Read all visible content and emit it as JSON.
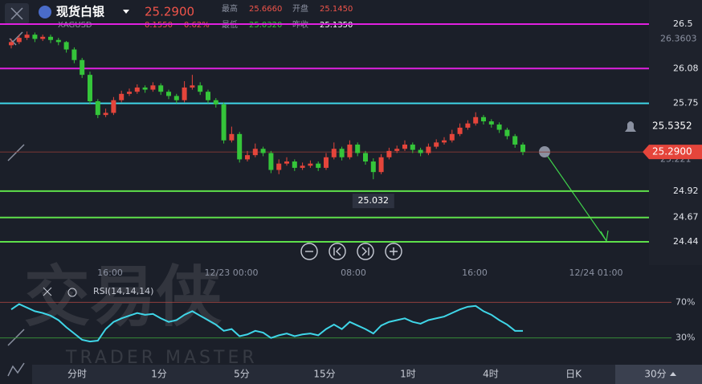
{
  "header": {
    "name": "现货白银",
    "price": "25.2900",
    "symbol": "XAGUSD",
    "change": "0.1550",
    "change_pct": "0.62%",
    "high_label": "最高",
    "high": "25.6660",
    "open_label": "开盘",
    "open": "25.1450",
    "low_label": "最低",
    "low": "25.0320",
    "prev_close_label": "昨收",
    "prev_close": "25.1350"
  },
  "chart_data": {
    "type": "candlestick",
    "ylim": [
      24.44,
      26.5
    ],
    "up_color": "#e5453b",
    "down_color": "#35c53a",
    "candles": [
      [
        26.3,
        26.36,
        26.27,
        26.33
      ],
      [
        26.33,
        26.4,
        26.31,
        26.37
      ],
      [
        26.37,
        26.43,
        26.35,
        26.4
      ],
      [
        26.4,
        26.42,
        26.33,
        26.36
      ],
      [
        26.36,
        26.4,
        26.34,
        26.38
      ],
      [
        26.38,
        26.4,
        26.32,
        26.35
      ],
      [
        26.35,
        26.37,
        26.3,
        26.33
      ],
      [
        26.33,
        26.34,
        26.23,
        26.26
      ],
      [
        26.26,
        26.28,
        26.13,
        26.16
      ],
      [
        26.16,
        26.18,
        25.99,
        26.02
      ],
      [
        26.02,
        26.05,
        25.74,
        25.77
      ],
      [
        25.77,
        25.79,
        25.61,
        25.64
      ],
      [
        25.64,
        25.7,
        25.62,
        25.66
      ],
      [
        25.66,
        25.81,
        25.64,
        25.78
      ],
      [
        25.78,
        25.87,
        25.76,
        25.84
      ],
      [
        25.84,
        25.89,
        25.82,
        25.86
      ],
      [
        25.86,
        25.93,
        25.84,
        25.9
      ],
      [
        25.9,
        25.92,
        25.85,
        25.88
      ],
      [
        25.88,
        25.95,
        25.86,
        25.92
      ],
      [
        25.92,
        25.94,
        25.83,
        25.86
      ],
      [
        25.86,
        25.88,
        25.79,
        25.82
      ],
      [
        25.82,
        25.84,
        25.75,
        25.78
      ],
      [
        25.78,
        25.96,
        25.76,
        25.9
      ],
      [
        25.9,
        26.02,
        25.88,
        25.92
      ],
      [
        25.92,
        25.95,
        25.83,
        25.86
      ],
      [
        25.86,
        25.88,
        25.75,
        25.78
      ],
      [
        25.78,
        25.8,
        25.71,
        25.74
      ],
      [
        25.74,
        25.76,
        25.37,
        25.4
      ],
      [
        25.4,
        25.53,
        25.38,
        25.46
      ],
      [
        25.46,
        25.48,
        25.19,
        25.22
      ],
      [
        25.22,
        25.3,
        25.2,
        25.26
      ],
      [
        25.26,
        25.37,
        25.24,
        25.32
      ],
      [
        25.32,
        25.34,
        25.25,
        25.28
      ],
      [
        25.28,
        25.3,
        25.09,
        25.12
      ],
      [
        25.12,
        25.22,
        25.08,
        25.18
      ],
      [
        25.18,
        25.24,
        25.16,
        25.2
      ],
      [
        25.2,
        25.22,
        25.11,
        25.14
      ],
      [
        25.14,
        25.19,
        25.12,
        25.16
      ],
      [
        25.16,
        25.21,
        25.14,
        25.18
      ],
      [
        25.18,
        25.2,
        25.11,
        25.14
      ],
      [
        25.14,
        25.28,
        25.12,
        25.24
      ],
      [
        25.24,
        25.38,
        25.22,
        25.32
      ],
      [
        25.32,
        25.34,
        25.21,
        25.24
      ],
      [
        25.24,
        25.4,
        25.22,
        25.36
      ],
      [
        25.36,
        25.38,
        25.25,
        25.28
      ],
      [
        25.28,
        25.3,
        25.17,
        25.2
      ],
      [
        25.2,
        25.23,
        25.032,
        25.1
      ],
      [
        25.1,
        25.27,
        25.08,
        25.24
      ],
      [
        25.24,
        25.33,
        25.22,
        25.3
      ],
      [
        25.3,
        25.35,
        25.28,
        25.32
      ],
      [
        25.32,
        25.4,
        25.3,
        25.36
      ],
      [
        25.36,
        25.38,
        25.28,
        25.31
      ],
      [
        25.31,
        25.33,
        25.25,
        25.28
      ],
      [
        25.28,
        25.37,
        25.26,
        25.34
      ],
      [
        25.34,
        25.41,
        25.32,
        25.38
      ],
      [
        25.38,
        25.43,
        25.36,
        25.4
      ],
      [
        25.4,
        25.5,
        25.38,
        25.46
      ],
      [
        25.46,
        25.56,
        25.44,
        25.52
      ],
      [
        25.52,
        25.59,
        25.5,
        25.56
      ],
      [
        25.56,
        25.666,
        25.54,
        25.62
      ],
      [
        25.62,
        25.64,
        25.55,
        25.58
      ],
      [
        25.58,
        25.6,
        25.52,
        25.55
      ],
      [
        25.55,
        25.57,
        25.47,
        25.5
      ],
      [
        25.5,
        25.52,
        25.41,
        25.44
      ],
      [
        25.44,
        25.46,
        25.33,
        25.36
      ],
      [
        25.36,
        25.38,
        25.26,
        25.29
      ]
    ],
    "price_lines": [
      {
        "value": 26.5,
        "color": "#e020e0"
      },
      {
        "value": 26.08,
        "color": "#e020e0"
      },
      {
        "value": 25.75,
        "color": "#3fd6e8"
      },
      {
        "value": 24.92,
        "color": "#5ee04a"
      },
      {
        "value": 24.67,
        "color": "#5ee04a"
      },
      {
        "value": 24.44,
        "color": "#5ee04a"
      }
    ],
    "axis_labels": [
      26.3603,
      25.5352,
      25.221
    ],
    "current_price": {
      "value": 25.29,
      "label": "25.2900"
    },
    "low_marker": {
      "value": 25.032,
      "label": "25.032"
    },
    "time_labels": [
      "16:00",
      "12/23 00:00",
      "08:00",
      "16:00",
      "12/24 01:00"
    ],
    "rsi": {
      "title": "RSI(14,14,14)",
      "color": "#3fd6e8",
      "ylim": [
        0,
        100
      ],
      "yticks": [
        {
          "value": 70,
          "label": "70%"
        },
        {
          "value": 30,
          "label": "30%"
        }
      ],
      "values": [
        62,
        68,
        64,
        60,
        58,
        55,
        50,
        42,
        35,
        28,
        26,
        27,
        40,
        48,
        52,
        55,
        58,
        56,
        57,
        52,
        48,
        50,
        56,
        60,
        55,
        50,
        45,
        38,
        40,
        32,
        34,
        38,
        36,
        30,
        33,
        35,
        32,
        34,
        35,
        33,
        40,
        45,
        40,
        48,
        44,
        40,
        35,
        44,
        48,
        50,
        52,
        48,
        46,
        50,
        52,
        54,
        58,
        62,
        65,
        66,
        60,
        56,
        50,
        45,
        38,
        38
      ]
    }
  },
  "watermark": {
    "title": "交易侠",
    "subtitle": "TRADER MASTER"
  },
  "tabs": [
    "分时",
    "1分",
    "5分",
    "15分",
    "1时",
    "4时",
    "日K",
    "30分"
  ]
}
